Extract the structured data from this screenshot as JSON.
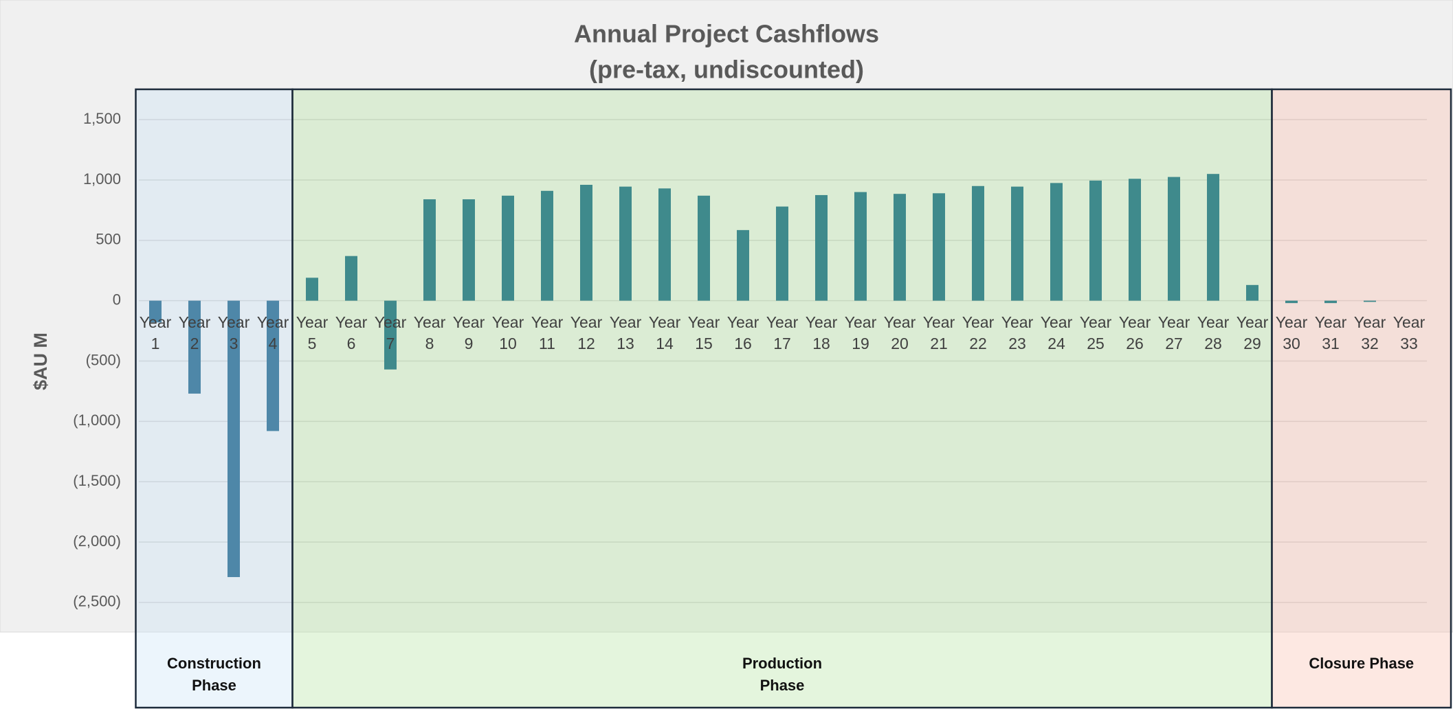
{
  "chart_data": {
    "type": "bar",
    "title": "Annual Project Cashflows",
    "subtitle": "(pre-tax, undiscounted)",
    "y_label": "$AU M",
    "categories": [
      "Year 1",
      "Year 2",
      "Year 3",
      "Year 4",
      "Year 5",
      "Year 6",
      "Year 7",
      "Year 8",
      "Year 9",
      "Year 10",
      "Year 11",
      "Year 12",
      "Year 13",
      "Year 14",
      "Year 15",
      "Year 16",
      "Year 17",
      "Year 18",
      "Year 19",
      "Year 20",
      "Year 21",
      "Year 22",
      "Year 23",
      "Year 24",
      "Year 25",
      "Year 26",
      "Year 27",
      "Year 28",
      "Year 29",
      "Year 30",
      "Year 31",
      "Year 32",
      "Year 33"
    ],
    "values": [
      -180,
      -770,
      -2290,
      -1080,
      190,
      370,
      -570,
      840,
      840,
      870,
      910,
      960,
      945,
      930,
      870,
      585,
      780,
      875,
      900,
      885,
      890,
      950,
      945,
      975,
      995,
      1010,
      1025,
      1050,
      130,
      -20,
      -20,
      -10,
      0
    ],
    "ylim": [
      -2700,
      1700
    ],
    "yticks": [
      {
        "value": 1500,
        "label": "1,500"
      },
      {
        "value": 1000,
        "label": "1,000"
      },
      500,
      0,
      {
        "value": -500,
        "label": "(500)"
      },
      {
        "value": -1000,
        "label": "(1,000)"
      },
      {
        "value": -1500,
        "label": "(1,500)"
      },
      {
        "value": -2000,
        "label": "(2,000)"
      },
      {
        "value": -2500,
        "label": "(2,500)"
      }
    ],
    "grid": true,
    "phases": [
      {
        "label": "Construction Phase",
        "color": "#4e87a8"
      },
      {
        "label": "Production Phase",
        "color": "#3f8a8c"
      },
      {
        "label": "Closure Phase",
        "color": "#3f8a8c"
      }
    ]
  }
}
